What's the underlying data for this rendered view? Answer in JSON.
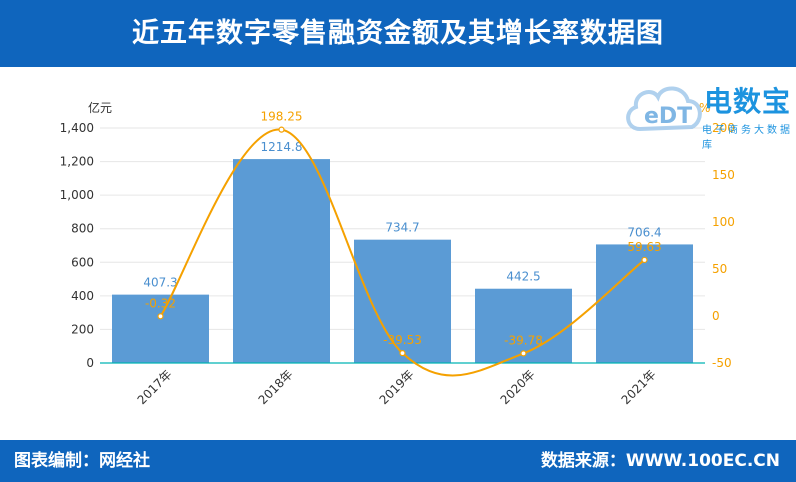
{
  "title": "近五年数字零售融资金额及其增长率数据图",
  "footer": {
    "left": "图表编制：网经社",
    "right": "数据来源：WWW.100EC.CN"
  },
  "logo": {
    "icon": "cloud-edt-logo",
    "name": "电数宝",
    "tagline": "电子商务大数据库",
    "mark": "eDT"
  },
  "colors": {
    "header": "#0f65bd",
    "bar": "#5b9bd5",
    "line": "#f5a100",
    "bar_label": "#4a8fcf"
  },
  "chart_data": {
    "type": "bar",
    "categories": [
      "2017年",
      "2018年",
      "2019年",
      "2020年",
      "2021年"
    ],
    "series": [
      {
        "name": "",
        "type": "bar",
        "axis": "left",
        "values": [
          407.3,
          1214.8,
          734.7,
          442.5,
          706.4
        ],
        "labels": [
          "407.3",
          "1214.8",
          "734.7",
          "442.5",
          "706.4"
        ]
      },
      {
        "name": "",
        "type": "line",
        "axis": "right",
        "values": [
          -0.32,
          198.25,
          -39.53,
          -39.78,
          59.63
        ],
        "labels": [
          "-0.32",
          "198.25",
          "-39.53",
          "-39.78",
          "59.63"
        ]
      }
    ],
    "y_left": {
      "unit": "亿元",
      "ylim": [
        0,
        1400
      ],
      "ticks": [
        0,
        200,
        400,
        600,
        800,
        1000,
        1200,
        1400
      ],
      "tick_labels": [
        "0",
        "200",
        "400",
        "600",
        "800",
        "1,000",
        "1,200",
        "1,400"
      ]
    },
    "y_right": {
      "unit": "%",
      "ylim": [
        -50,
        200
      ],
      "ticks": [
        -50,
        0,
        50,
        100,
        150,
        200
      ],
      "tick_labels": [
        "-50",
        "0",
        "50",
        "100",
        "150",
        "200"
      ]
    },
    "grid": true,
    "legend": "none"
  }
}
